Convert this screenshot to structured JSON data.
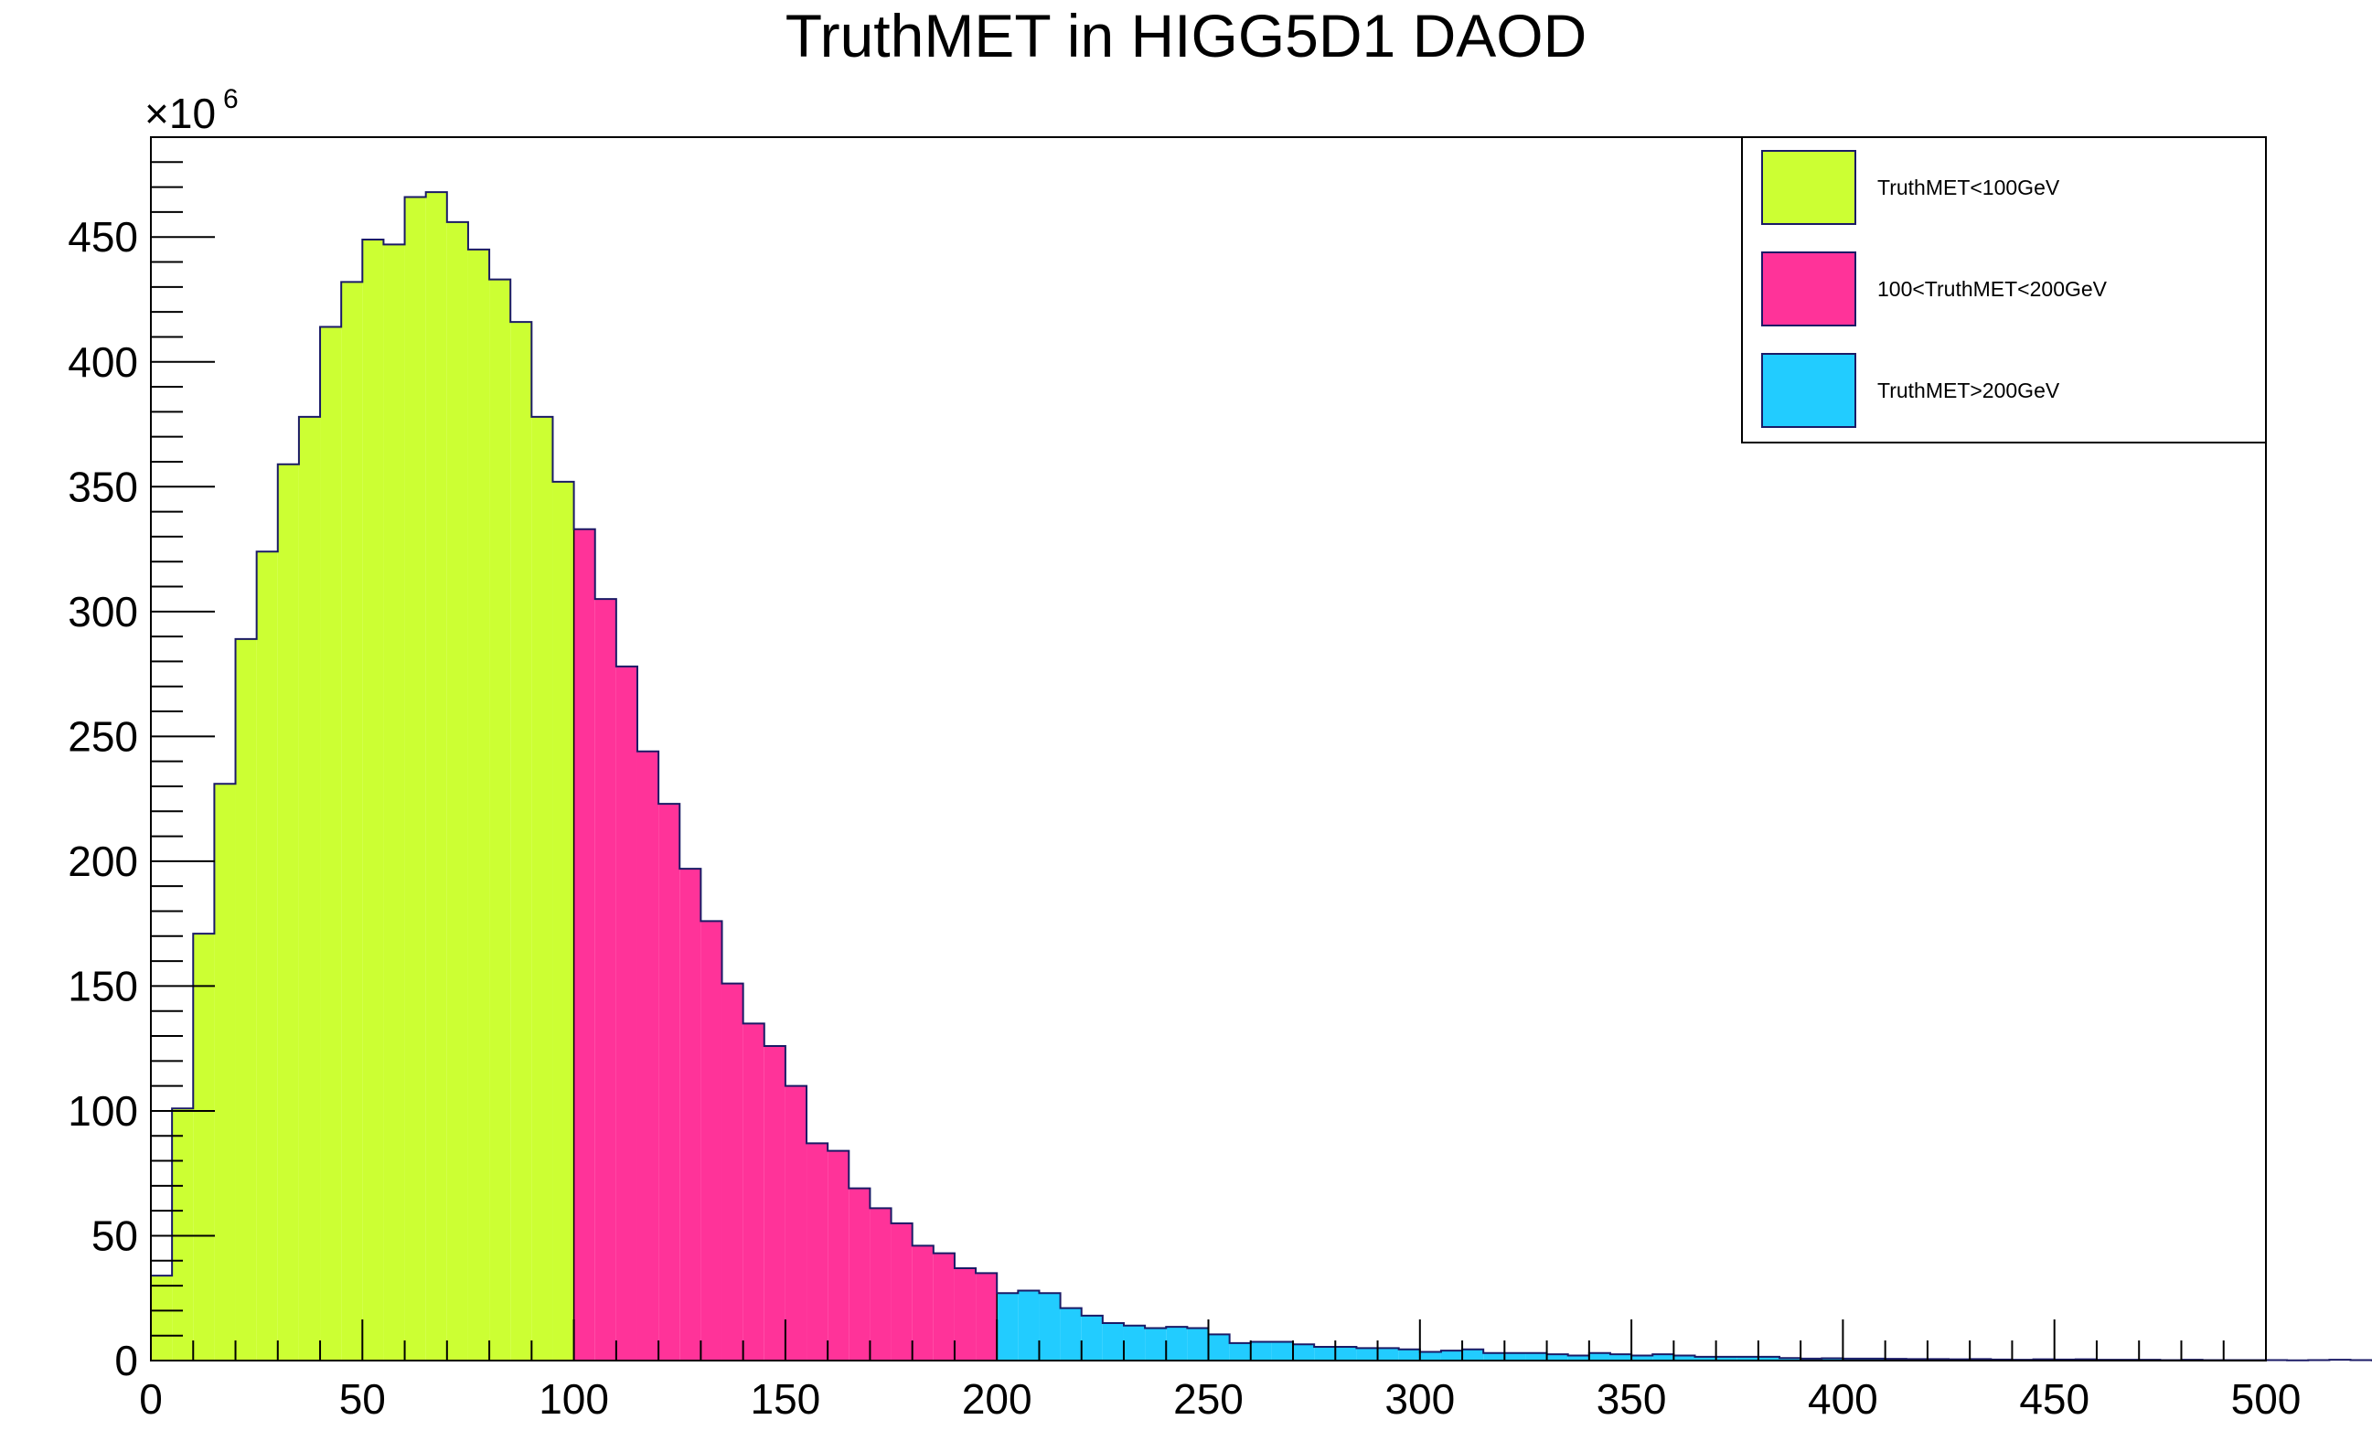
{
  "chart_data": {
    "type": "bar",
    "title": "TruthMET in HIGG5D1 DAOD",
    "xlabel": "",
    "ylabel": "",
    "y_exponent_label": "×10",
    "y_exponent": "6",
    "xlim": [
      0,
      500
    ],
    "ylim": [
      0,
      490
    ],
    "x_ticks": [
      0,
      50,
      100,
      150,
      200,
      250,
      300,
      350,
      400,
      450,
      500
    ],
    "y_ticks": [
      0,
      50,
      100,
      150,
      200,
      250,
      300,
      350,
      400,
      450
    ],
    "x_tick_labels": [
      "0",
      "50",
      "100",
      "150",
      "200",
      "250",
      "300",
      "350",
      "400",
      "450",
      "500"
    ],
    "y_tick_labels": [
      "0",
      "50",
      "100",
      "150",
      "200",
      "250",
      "300",
      "350",
      "400",
      "450"
    ],
    "bin_width": 5,
    "grid": false,
    "legend_position": "top-right",
    "legend": [
      {
        "label": "TruthMET<100GeV",
        "color": "#ccff33"
      },
      {
        "label": "100<TruthMET<200GeV",
        "color": "#ff3399"
      },
      {
        "label": "TruthMET>200GeV",
        "color": "#22ccff"
      }
    ],
    "series": [
      {
        "name": "TruthMET<100GeV",
        "color": "#ccff33",
        "x_start": 0,
        "values": [
          34,
          101,
          171,
          231,
          289,
          324,
          359,
          378,
          414,
          432,
          449,
          447,
          466,
          468,
          456,
          445,
          433,
          416,
          378,
          352
        ]
      },
      {
        "name": "100<TruthMET<200GeV",
        "color": "#ff3399",
        "x_start": 100,
        "values": [
          333,
          305,
          278,
          244,
          223,
          197,
          176,
          151,
          135,
          126,
          110,
          87,
          84,
          69,
          61,
          55,
          46,
          43,
          37,
          35
        ]
      },
      {
        "name": "TruthMET>200GeV",
        "color": "#22ccff",
        "x_start": 200,
        "values": [
          27,
          28,
          27,
          21,
          18,
          15,
          14,
          13,
          13.5,
          13,
          10.5,
          7,
          7.5,
          7.5,
          6.5,
          5.5,
          5.5,
          5,
          5,
          4.5,
          3.5,
          4,
          4.5,
          3,
          3,
          3,
          2.5,
          2,
          3,
          2.5,
          2,
          2.5,
          2,
          1.5,
          1.5,
          1.5,
          1.5,
          1,
          0.8,
          0.9,
          0.8,
          0.8,
          0.7,
          0.6,
          0.6,
          0.5,
          0.6,
          0.4,
          0.3,
          0.5,
          0.4,
          0.5,
          0.3,
          0.3,
          0.3,
          0.2,
          0.3,
          0.2,
          0.2,
          0.2,
          0.2,
          0.1,
          0.2,
          0.3,
          0.2,
          0.1,
          0.1,
          0.2,
          0.1,
          0.1,
          0.1,
          0.2,
          0.1,
          0.1,
          0.1,
          0.1,
          0.1,
          0.1,
          0.1,
          0.1,
          0.1,
          0.1,
          0.2,
          0.1,
          0.1,
          0.1,
          0.1,
          0.1,
          0.1,
          0.1,
          0.1,
          0.1,
          0.1,
          0.1,
          0.1,
          0.1,
          0.1,
          0.1,
          0.1,
          0.9
        ]
      }
    ]
  }
}
